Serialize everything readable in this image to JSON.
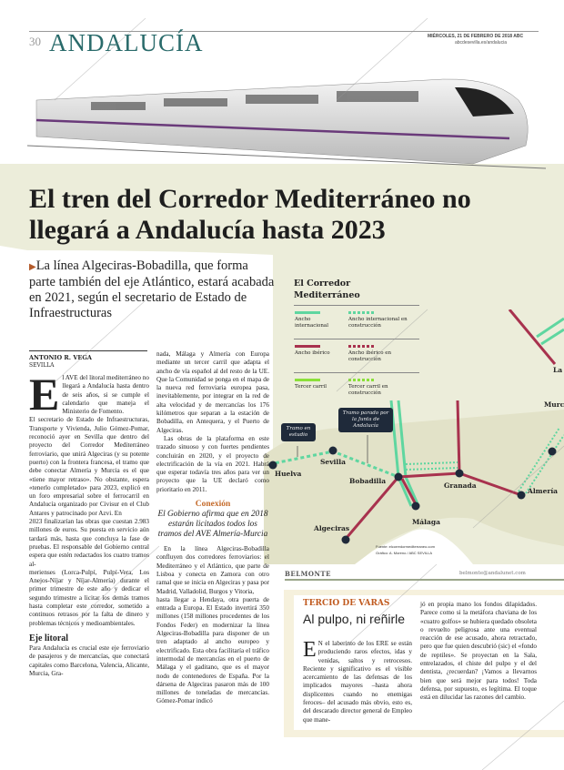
{
  "header": {
    "page_number": "30",
    "section": "ANDALUCÍA",
    "date": "MIÉRCOLES, 21 DE FEBRERO DE 2018   ABC",
    "url": "abcdesevilla.es/andalucia"
  },
  "article": {
    "headline": "El tren del Corredor Mediterráneo no llegará a Andalucía hasta 2023",
    "deck": "La línea Algeciras-Bobadilla, que forma parte también del eje Atlántico, estará acabada en 2021, según el secretario de Estado de Infraestructuras",
    "byline": "ANTONIO R. VEGA",
    "city": "SEVILLA",
    "drop_cap": "E",
    "col1_a": "l AVE del litoral mediterráneo no llegará a Andalucía hasta dentro de seis años, si se cumple el calendario que maneja el Ministerio de Fomento.",
    "col1_b": "El secretario de Estado de Infraestructuras, Transporte y Vivienda, Julio Gómez-Pomar, reconoció ayer en Sevilla que dentro del proyecto del Corredor Mediterráneo ferroviario, que unirá Algeciras (y su potente puerto) con la frontera francesa, el tramo que debe conectar Almería y Murcia es el que «tiene mayor retraso». No obstante, espera «tenerlo completado» para 2023, explicó en un foro empresarial sobre el ferrocarril en Andalucía organizado por Civisur en el Club Antares y patrocinado por Azvi. En",
    "col1_c": "2023 finalizarían las obras que cuestan 2.983 millones de euros. Su puesta en servicio aún tardará más, hasta que concluya la fase de pruebas. El responsable del Gobierno central espera que estén redactados los cuatro tramos al-",
    "col1_d": "merienses (Lorca-Pulpí, Pulpí-Vera, Los Anejos-Níjar y Níjar-Almería) durante el primer trimestre de este año y dedicar el segundo trimestre a licitar los demás tramos hasta completar este corredor, sometido a continuos retrasos por la falta de dinero y problemas técnicos y medioambientales.",
    "subhead": "Eje litoral",
    "col1_e": "Para Andalucía es crucial este eje ferroviario de pasajeros y de mercancías, que conectará capitales como Barcelona, Valencia, Alicante, Murcia, Gra-",
    "col2_a": "nada, Málaga y Almería con Europa mediante un tercer carril que adapta el ancho de vía español al del resto de la UE. Que la Comunidad se ponga en el mapa de la nueva red ferroviaria europea pasa, inevitablemente, por integrar en la red de alta velocidad y de mercancías los 176 kilómetros que separan a la estación de Bobadilla, en Antequera, y el Puerto de Algeciras.",
    "col2_b": "Las obras de la plataforma en este trazado sinuoso y con fuertes pendientes concluirán en 2020, y el proyecto de electrificación de la vía en 2021. Habrá que esperar todavía tres años para ver un proyecto que la UE declaró como prioritario en 2011.",
    "col2_c": "En la línea Algeciras-Bobadilla confluyen dos corredores ferroviarios: el Mediterráneo y el Atlántico, que parte de Lisboa y conecta en Zamora con otro ramal que se inicia en Algeciras y pasa por Madrid, Valladolid, Burgos y Vitoria,",
    "col2_d": "hasta llegar a Hendaya, otra puerta de entrada a Europa. El Estado invertirá 350 millones (158 millones procedentes de los Fondos Feder) en modernizar la línea Algeciras-Bobadilla para disponer de un tren adaptado al ancho europeo y electrificado. Esta obra facilitaría el tráfico intermodal de mercancías en el puerto de Málaga y el gaditano, que es el mayor nodo de contenedores de España. Por la dársena de Algeciras pasaron más de 100 millones de toneladas de mercancías. Gómez-Pomar indicó",
    "pull_kicker": "Conexión",
    "pull_quote": "El Gobierno afirma que en 2018 estarán licitados todos los tramos del AVE Almería-Murcia"
  },
  "map": {
    "title_line1": "El Corredor",
    "title_line2": "Mediterráneo",
    "legend": [
      {
        "label": "Ancho internacional",
        "color": "#5fd6a0",
        "style": "solid"
      },
      {
        "label": "Ancho internacional en construcción",
        "color": "#5fd6a0",
        "style": "dashed"
      },
      {
        "label": "Ancho ibérico",
        "color": "#a8324e",
        "style": "solid"
      },
      {
        "label": "Ancho ibérico en construcción",
        "color": "#a8324e",
        "style": "dashed"
      },
      {
        "label": "Tercer carril",
        "color": "#8be03a",
        "style": "solid"
      },
      {
        "label": "Tercer carril en construcción",
        "color": "#8be03a",
        "style": "dashed"
      }
    ],
    "cities": [
      "Huelva",
      "Sevilla",
      "Bobadilla",
      "Málaga",
      "Algeciras",
      "Granada",
      "Almería",
      "Murc",
      "La"
    ],
    "callouts": [
      "Tramo en estudio",
      "Tramo parado por la Junta de Andalucía"
    ],
    "source": "Fuente: elcorredormediterraneo.com",
    "credit": "Gráfico: A. Moreno / ABC SEVILLA"
  },
  "column": {
    "author": "BELMONTE",
    "email": "belmonte@andalunet.com",
    "kicker": "TERCIO DE VARAS",
    "title": "Al pulpo, ni reñirle",
    "drop_cap": "E",
    "text1": "N el laberinto de los ERE se están produciendo raros efectos, idas y venidas, saltos y retrocesos. Reciente y significativo es el visible acercamiento de las defensas de los implicados mayores –hasta ahora displicentes cuando no enemigas feroces– del acusado más obvio, esto es, del descarado director general de Empleo que mane-",
    "text2": "jó en propia mano los fondos dilapidados. Parece como si la metáfora chaviana de los «cuatro golfos» se hubiera quedado obsoleta o revuelto peligrosa ante una eventual reacción de ese acusado, ahora retractado, pero que fue quien descubrió (sic) el «fondo de reptiles». Se proyectan en la Sala, entrelazados, el chiste del pulpo y el del dentista, ¿recuerdan? ¡Vamos a llevarnos bien que será mejor para todos! Toda defensa, por supuesto, es legítima. El toque está en dilucidar las razones del cambio."
  },
  "watermark": "ABC"
}
